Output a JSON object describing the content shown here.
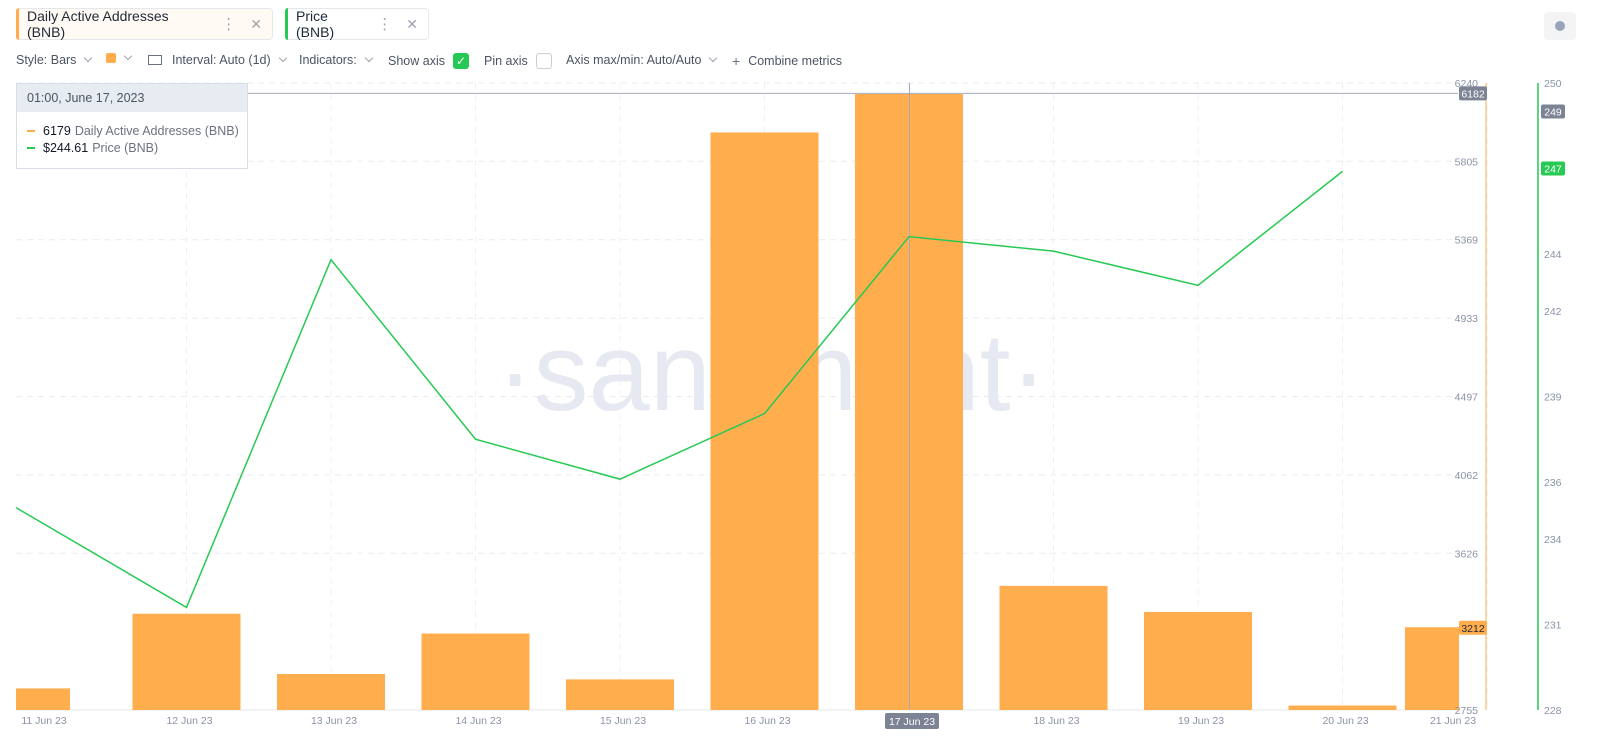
{
  "tabs": [
    {
      "label": "Daily Active Addresses (BNB)",
      "color": "#ffad4d"
    },
    {
      "label": "Price (BNB)",
      "color": "#26c953"
    }
  ],
  "toolbar": {
    "style": "Style: Bars",
    "interval": "Interval: Auto (1d)",
    "indicators": "Indicators:",
    "show_axis": "Show axis",
    "show_axis_checked": true,
    "pin_axis": "Pin axis",
    "pin_axis_checked": false,
    "axis_minmax": "Axis max/min: Auto/Auto",
    "combine": "Combine metrics"
  },
  "tooltip": {
    "date": "01:00, June 17, 2023",
    "rows": [
      {
        "value": "6179",
        "label": "Daily Active Addresses (BNB)",
        "color": "#ffad4d"
      },
      {
        "value": "$244.61",
        "label": "Price (BNB)",
        "color": "#26c953"
      }
    ]
  },
  "watermark": "·santiment·",
  "chart_data": {
    "type": "bar",
    "categories": [
      "11 Jun 23",
      "12 Jun 23",
      "13 Jun 23",
      "14 Jun 23",
      "15 Jun 23",
      "16 Jun 23",
      "17 Jun 23",
      "18 Jun 23",
      "19 Jun 23",
      "20 Jun 23",
      "21 Jun 23"
    ],
    "x_tick_labels": [
      "11 Jun 23",
      "12 Jun 23",
      "13 Jun 23",
      "14 Jun 23",
      "15 Jun 23",
      "16 Jun 23",
      "17 Jun 23",
      "18 Jun 23",
      "19 Jun 23",
      "20 Jun 23",
      "21 Jun 23"
    ],
    "highlighted_category": "17 Jun 23",
    "series": [
      {
        "name": "Daily Active Addresses (BNB)",
        "type": "bar",
        "axis": "left",
        "color": "#ffad4d",
        "values": [
          2875,
          3290,
          2955,
          3180,
          2925,
          5965,
          6179,
          3445,
          3300,
          2780,
          3215
        ]
      },
      {
        "name": "Price (BNB)",
        "type": "line",
        "axis": "right",
        "color": "#26c953",
        "values": [
          235.1,
          231.6,
          243.8,
          237.5,
          236.1,
          238.4,
          244.61,
          244.1,
          242.9,
          246.9,
          null
        ]
      }
    ],
    "y_left": {
      "ticks": [
        "6240",
        "5805",
        "5369",
        "4933",
        "4497",
        "4062",
        "3626",
        "2755"
      ],
      "tick_values": [
        6240,
        5805,
        5369,
        4933,
        4497,
        4062,
        3626,
        2755
      ],
      "ylim": [
        2755,
        6240
      ],
      "markers": [
        {
          "label": "6182",
          "value": 6182,
          "color": "#7b8394"
        },
        {
          "label": "3212",
          "value": 3212,
          "color": "#ffad4d"
        }
      ]
    },
    "y_right": {
      "ticks": [
        "250",
        "244",
        "242",
        "239",
        "236",
        "234",
        "231",
        "228"
      ],
      "tick_values": [
        250,
        244,
        242,
        239,
        236,
        234,
        231,
        228
      ],
      "ylim": [
        228,
        250
      ],
      "markers": [
        {
          "label": "249",
          "value": 249,
          "color": "#7b8394"
        },
        {
          "label": "247",
          "value": 247,
          "color": "#26c953"
        }
      ]
    },
    "grid": true,
    "crosshair_category": "17 Jun 23"
  }
}
